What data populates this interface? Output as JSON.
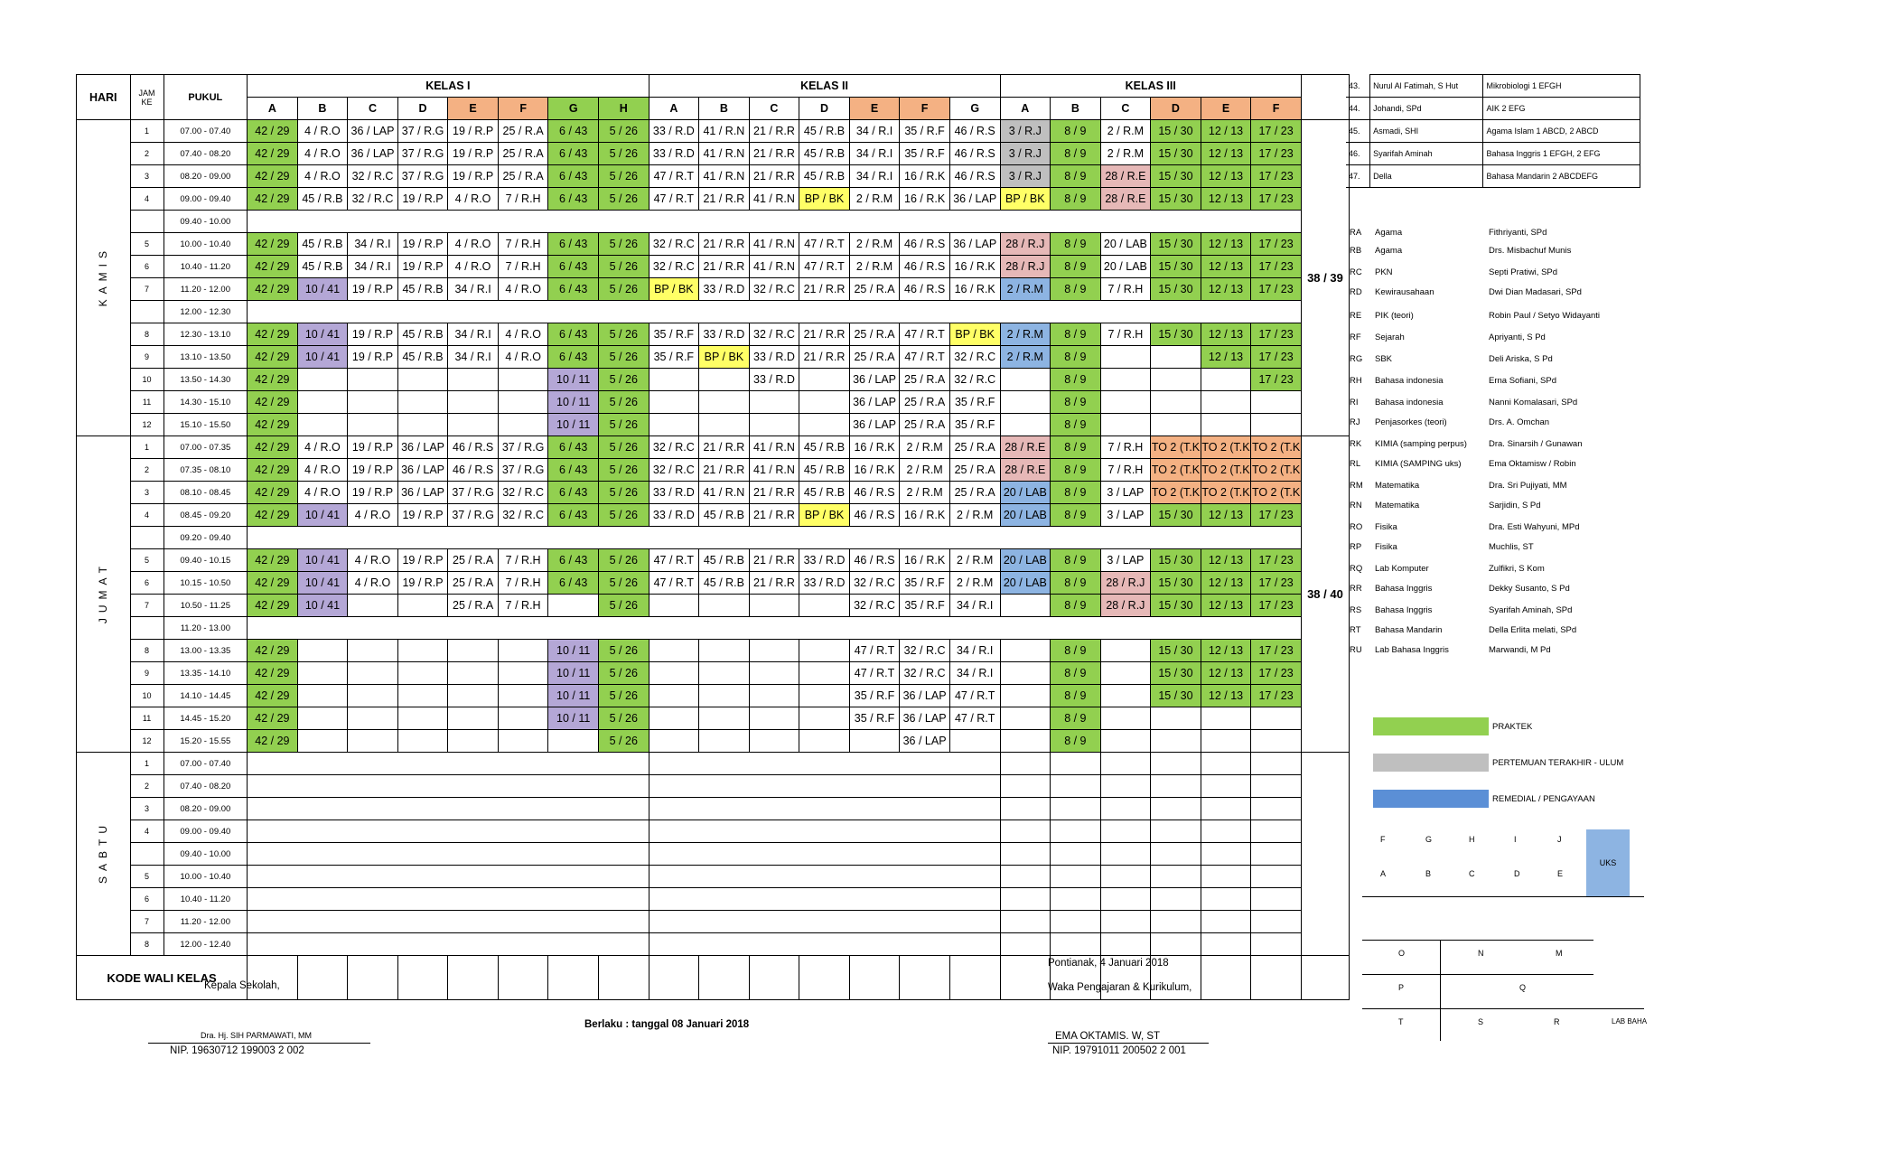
{
  "header": {
    "hari": "HARI",
    "jam": "JAM",
    "ke": "KE",
    "pukul": "PUKUL",
    "kelas1": "KELAS I",
    "kelas2": "KELAS II",
    "kelas3": "KELAS III",
    "sub1": [
      "A",
      "B",
      "C",
      "D",
      "E",
      "F",
      "G",
      "H"
    ],
    "sub2": [
      "A",
      "B",
      "C",
      "D",
      "E",
      "F",
      "G"
    ],
    "sub3": [
      "A",
      "B",
      "C",
      "D",
      "E",
      "F"
    ]
  },
  "days": [
    {
      "name": "KAMIS",
      "total": "38 / 39",
      "rows": [
        {
          "ke": "1",
          "pukul": "07.00 - 07.40",
          "cells": [
            "42 / 29",
            "4 / R.O",
            "36 / LAP",
            "37 / R.G",
            "19 / R.P",
            "25 / R.A",
            "6 / 43",
            "5 / 26",
            "33 / R.D",
            "41 / R.N",
            "21 / R.R",
            "45 / R.B",
            "34 / R.I",
            "35 / R.F",
            "46 / R.S",
            "3 / R.J",
            "8 / 9",
            "2 / R.M",
            "15 / 30",
            "12 / 13",
            "17 / 23"
          ]
        },
        {
          "ke": "2",
          "pukul": "07.40 - 08.20",
          "cells": [
            "42 / 29",
            "4 / R.O",
            "36 / LAP",
            "37 / R.G",
            "19 / R.P",
            "25 / R.A",
            "6 / 43",
            "5 / 26",
            "33 / R.D",
            "41 / R.N",
            "21 / R.R",
            "45 / R.B",
            "34 / R.I",
            "35 / R.F",
            "46 / R.S",
            "3 / R.J",
            "8 / 9",
            "2 / R.M",
            "15 / 30",
            "12 / 13",
            "17 / 23"
          ]
        },
        {
          "ke": "3",
          "pukul": "08.20 - 09.00",
          "cells": [
            "42 / 29",
            "4 / R.O",
            "32 / R.C",
            "37 / R.G",
            "19 / R.P",
            "25 / R.A",
            "6 / 43",
            "5 / 26",
            "47 / R.T",
            "41 / R.N",
            "21 / R.R",
            "45 / R.B",
            "34 / R.I",
            "16 / R.K",
            "46 / R.S",
            "3 / R.J",
            "8 / 9",
            "28 / R.E",
            "15 / 30",
            "12 / 13",
            "17 / 23"
          ]
        },
        {
          "ke": "4",
          "pukul": "09.00 - 09.40",
          "cells": [
            "42 / 29",
            "45 / R.B",
            "32 / R.C",
            "19 / R.P",
            "4 / R.O",
            "7 / R.H",
            "6 / 43",
            "5 / 26",
            "47 / R.T",
            "21 / R.R",
            "41 / R.N",
            "BP / BK",
            "2 / R.M",
            "16 / R.K",
            "36 / LAP",
            "BP / BK",
            "8 / 9",
            "28 / R.E",
            "15 / 30",
            "12 / 13",
            "17 / 23"
          ]
        },
        {
          "ke": "",
          "pukul": "09.40 - 10.00",
          "brk": true
        },
        {
          "ke": "5",
          "pukul": "10.00 - 10.40",
          "cells": [
            "42 / 29",
            "45 / R.B",
            "34 / R.I",
            "19 / R.P",
            "4 / R.O",
            "7 / R.H",
            "6 / 43",
            "5 / 26",
            "32 / R.C",
            "21 / R.R",
            "41 / R.N",
            "47 / R.T",
            "2 / R.M",
            "46 / R.S",
            "36 / LAP",
            "28 / R.J",
            "8 / 9",
            "20 / LAB",
            "15 / 30",
            "12 / 13",
            "17 / 23"
          ]
        },
        {
          "ke": "6",
          "pukul": "10.40 - 11.20",
          "cells": [
            "42 / 29",
            "45 / R.B",
            "34 / R.I",
            "19 / R.P",
            "4 / R.O",
            "7 / R.H",
            "6 / 43",
            "5 / 26",
            "32 / R.C",
            "21 / R.R",
            "41 / R.N",
            "47 / R.T",
            "2 / R.M",
            "46 / R.S",
            "16 / R.K",
            "28 / R.J",
            "8 / 9",
            "20 / LAB",
            "15 / 30",
            "12 / 13",
            "17 / 23"
          ]
        },
        {
          "ke": "7",
          "pukul": "11.20 - 12.00",
          "cells": [
            "42 / 29",
            "10 / 41",
            "19 / R.P",
            "45 / R.B",
            "34 / R.I",
            "4 / R.O",
            "6 / 43",
            "5 / 26",
            "BP / BK",
            "33 / R.D",
            "32 / R.C",
            "21 / R.R",
            "25 / R.A",
            "46 / R.S",
            "16 / R.K",
            "2 / R.M",
            "8 / 9",
            "7 / R.H",
            "15 / 30",
            "12 / 13",
            "17 / 23"
          ]
        },
        {
          "ke": "",
          "pukul": "12.00 - 12.30",
          "brk": true
        },
        {
          "ke": "8",
          "pukul": "12.30 - 13.10",
          "cells": [
            "42 / 29",
            "10 / 41",
            "19 / R.P",
            "45 / R.B",
            "34 / R.I",
            "4 / R.O",
            "6 / 43",
            "5 / 26",
            "35 / R.F",
            "33 / R.D",
            "32 / R.C",
            "21 / R.R",
            "25 / R.A",
            "47 / R.T",
            "BP / BK",
            "2 / R.M",
            "8 / 9",
            "7 / R.H",
            "15 / 30",
            "12 / 13",
            "17 / 23"
          ]
        },
        {
          "ke": "9",
          "pukul": "13.10 - 13.50",
          "cells": [
            "42 / 29",
            "10 / 41",
            "19 / R.P",
            "45 / R.B",
            "34 / R.I",
            "4 / R.O",
            "6 / 43",
            "5 / 26",
            "35 / R.F",
            "BP / BK",
            "33 / R.D",
            "21 / R.R",
            "25 / R.A",
            "47 / R.T",
            "32 / R.C",
            "2 / R.M",
            "8 / 9",
            "",
            "",
            "12 / 13",
            "17 / 23"
          ]
        },
        {
          "ke": "10",
          "pukul": "13.50 - 14.30",
          "cells": [
            "42 / 29",
            "",
            "",
            "",
            "",
            "",
            "10 / 11",
            "5 / 26",
            "",
            "",
            "33 / R.D",
            "",
            "36 / LAP",
            "25 / R.A",
            "32 / R.C",
            "",
            "8 / 9",
            "",
            "",
            "",
            "17 / 23"
          ]
        },
        {
          "ke": "11",
          "pukul": "14.30 - 15.10",
          "cells": [
            "42 / 29",
            "",
            "",
            "",
            "",
            "",
            "10 / 11",
            "5 / 26",
            "",
            "",
            "",
            "",
            "36 / LAP",
            "25 / R.A",
            "35 / R.F",
            "",
            "8 / 9",
            "",
            "",
            "",
            ""
          ]
        },
        {
          "ke": "12",
          "pukul": "15.10 - 15.50",
          "cells": [
            "42 / 29",
            "",
            "",
            "",
            "",
            "",
            "10 / 11",
            "5 / 26",
            "",
            "",
            "",
            "",
            "36 / LAP",
            "25 / R.A",
            "35 / R.F",
            "",
            "8 / 9",
            "",
            "",
            "",
            ""
          ]
        }
      ]
    },
    {
      "name": "JUMAT",
      "total": "38 / 40",
      "rows": [
        {
          "ke": "1",
          "pukul": "07.00 - 07.35",
          "cells": [
            "42 / 29",
            "4 / R.O",
            "19 / R.P",
            "36 / LAP",
            "46 / R.S",
            "37 / R.G",
            "6 / 43",
            "5 / 26",
            "32 / R.C",
            "21 / R.R",
            "41 / R.N",
            "45 / R.B",
            "16 / R.K",
            "2 / R.M",
            "25 / R.A",
            "28 / R.E",
            "8 / 9",
            "7 / R.H",
            "TO 2 (T.K",
            "TO 2 (T.K",
            "TO 2 (T.K"
          ]
        },
        {
          "ke": "2",
          "pukul": "07.35 - 08.10",
          "cells": [
            "42 / 29",
            "4 / R.O",
            "19 / R.P",
            "36 / LAP",
            "46 / R.S",
            "37 / R.G",
            "6 / 43",
            "5 / 26",
            "32 / R.C",
            "21 / R.R",
            "41 / R.N",
            "45 / R.B",
            "16 / R.K",
            "2 / R.M",
            "25 / R.A",
            "28 / R.E",
            "8 / 9",
            "7 / R.H",
            "TO 2 (T.K",
            "TO 2 (T.K",
            "TO 2 (T.K"
          ]
        },
        {
          "ke": "3",
          "pukul": "08.10 - 08.45",
          "cells": [
            "42 / 29",
            "4 / R.O",
            "19 / R.P",
            "36 / LAP",
            "37 / R.G",
            "32 / R.C",
            "6 / 43",
            "5 / 26",
            "33 / R.D",
            "41 / R.N",
            "21 / R.R",
            "45 / R.B",
            "46 / R.S",
            "2 / R.M",
            "25 / R.A",
            "20 / LAB",
            "8 / 9",
            "3 / LAP",
            "TO 2 (T.K",
            "TO 2 (T.K",
            "TO 2 (T.K"
          ]
        },
        {
          "ke": "4",
          "pukul": "08.45 - 09.20",
          "cells": [
            "42 / 29",
            "10 / 41",
            "4 / R.O",
            "19 / R.P",
            "37 / R.G",
            "32 / R.C",
            "6 / 43",
            "5 / 26",
            "33 / R.D",
            "45 / R.B",
            "21 / R.R",
            "BP / BK",
            "46 / R.S",
            "16 / R.K",
            "2 / R.M",
            "20 / LAB",
            "8 / 9",
            "3 / LAP",
            "15 / 30",
            "12 / 13",
            "17 / 23"
          ]
        },
        {
          "ke": "",
          "pukul": "09.20 - 09.40",
          "brk": true
        },
        {
          "ke": "5",
          "pukul": "09.40 - 10.15",
          "cells": [
            "42 / 29",
            "10 / 41",
            "4 / R.O",
            "19 / R.P",
            "25 / R.A",
            "7 / R.H",
            "6 / 43",
            "5 / 26",
            "47 / R.T",
            "45 / R.B",
            "21 / R.R",
            "33 / R.D",
            "46 / R.S",
            "16 / R.K",
            "2 / R.M",
            "20 / LAB",
            "8 / 9",
            "3 / LAP",
            "15 / 30",
            "12 / 13",
            "17 / 23"
          ]
        },
        {
          "ke": "6",
          "pukul": "10.15 - 10.50",
          "cells": [
            "42 / 29",
            "10 / 41",
            "4 / R.O",
            "19 / R.P",
            "25 / R.A",
            "7 / R.H",
            "6 / 43",
            "5 / 26",
            "47 / R.T",
            "45 / R.B",
            "21 / R.R",
            "33 / R.D",
            "32 / R.C",
            "35 / R.F",
            "2 / R.M",
            "20 / LAB",
            "8 / 9",
            "28 / R.J",
            "15 / 30",
            "12 / 13",
            "17 / 23"
          ]
        },
        {
          "ke": "7",
          "pukul": "10.50 - 11.25",
          "cells": [
            "42 / 29",
            "10 / 41",
            "",
            "",
            "25 / R.A",
            "7 / R.H",
            "",
            "5 / 26",
            "",
            "",
            "",
            "",
            "32 / R.C",
            "35 / R.F",
            "34 / R.I",
            "",
            "8 / 9",
            "28 / R.J",
            "15 / 30",
            "12 / 13",
            "17 / 23"
          ]
        },
        {
          "ke": "",
          "pukul": "11.20 - 13.00",
          "brk": true
        },
        {
          "ke": "8",
          "pukul": "13.00 - 13.35",
          "cells": [
            "42 / 29",
            "",
            "",
            "",
            "",
            "",
            "10 / 11",
            "5 / 26",
            "",
            "",
            "",
            "",
            "47 / R.T",
            "32 / R.C",
            "34 / R.I",
            "",
            "8 / 9",
            "",
            "15 / 30",
            "12 / 13",
            "17 / 23"
          ]
        },
        {
          "ke": "9",
          "pukul": "13.35 - 14.10",
          "cells": [
            "42 / 29",
            "",
            "",
            "",
            "",
            "",
            "10 / 11",
            "5 / 26",
            "",
            "",
            "",
            "",
            "47 / R.T",
            "32 / R.C",
            "34 / R.I",
            "",
            "8 / 9",
            "",
            "15 / 30",
            "12 / 13",
            "17 / 23"
          ]
        },
        {
          "ke": "10",
          "pukul": "14.10 - 14.45",
          "cells": [
            "42 / 29",
            "",
            "",
            "",
            "",
            "",
            "10 / 11",
            "5 / 26",
            "",
            "",
            "",
            "",
            "35 / R.F",
            "36 / LAP",
            "47 / R.T",
            "",
            "8 / 9",
            "",
            "15 / 30",
            "12 / 13",
            "17 / 23"
          ]
        },
        {
          "ke": "11",
          "pukul": "14.45 - 15.20",
          "cells": [
            "42 / 29",
            "",
            "",
            "",
            "",
            "",
            "10 / 11",
            "5 / 26",
            "",
            "",
            "",
            "",
            "35 / R.F",
            "36 / LAP",
            "47 / R.T",
            "",
            "8 / 9",
            "",
            "",
            "",
            ""
          ]
        },
        {
          "ke": "12",
          "pukul": "15.20 - 15.55",
          "cells": [
            "42 / 29",
            "",
            "",
            "",
            "",
            "",
            "",
            "5 / 26",
            "",
            "",
            "",
            "",
            "",
            "36 / LAP",
            "",
            "",
            "8 / 9",
            "",
            "",
            "",
            ""
          ]
        }
      ]
    },
    {
      "name": "SABTU",
      "total": "",
      "rows": [
        {
          "ke": "1",
          "pukul": "07.00 - 07.40",
          "sabtu": true
        },
        {
          "ke": "2",
          "pukul": "07.40 - 08.20",
          "sabtu": true
        },
        {
          "ke": "3",
          "pukul": "08.20 - 09.00",
          "sabtu": true
        },
        {
          "ke": "4",
          "pukul": "09.00 - 09.40",
          "sabtu": true
        },
        {
          "ke": "",
          "pukul": "09.40 - 10.00",
          "sabtu": true
        },
        {
          "ke": "5",
          "pukul": "10.00 - 10.40",
          "sabtu": true
        },
        {
          "ke": "6",
          "pukul": "10.40 - 11.20",
          "sabtu": true
        },
        {
          "ke": "7",
          "pukul": "11.20 - 12.00",
          "sabtu": true
        },
        {
          "ke": "8",
          "pukul": "12.00 - 12.40",
          "sabtu": true
        }
      ]
    }
  ],
  "kode_wali": "KODE WALI KELAS",
  "teachers_extra": [
    {
      "no": "43.",
      "name": "Nurul Al Fatimah, S Hut",
      "subject": "Mikrobiologi 1 EFGH"
    },
    {
      "no": "44.",
      "name": "Johandi, SPd",
      "subject": "AIK 2 EFG"
    },
    {
      "no": "45.",
      "name": "Asmadi, SHI",
      "subject": "Agama Islam 1 ABCD, 2 ABCD"
    },
    {
      "no": "46.",
      "name": "Syarifah Aminah",
      "subject": "Bahasa Inggris 1 EFGH, 2 EFG"
    },
    {
      "no": "47.",
      "name": "Della",
      "subject": "Bahasa Mandarin 2 ABCDEFG"
    }
  ],
  "rooms": [
    {
      "code": "RA",
      "subject": "Agama",
      "teacher": "Fithriyanti, SPd"
    },
    {
      "code": "RB",
      "subject": "Agama",
      "teacher": "Drs. Misbachuf Munis"
    },
    {
      "code": "RC",
      "subject": "PKN",
      "teacher": "Septi Pratiwi, SPd"
    },
    {
      "code": "RD",
      "subject": "Kewirausahaan",
      "teacher": "Dwi Dian Madasari, SPd"
    },
    {
      "code": "RE",
      "subject": "PIK (teori)",
      "teacher": "Robin Paul / Setyo Widayanti"
    },
    {
      "code": "RF",
      "subject": "Sejarah",
      "teacher": "Apriyanti, S Pd"
    },
    {
      "code": "RG",
      "subject": "SBK",
      "teacher": "Deli Ariska, S Pd"
    },
    {
      "code": "RH",
      "subject": "Bahasa indonesia",
      "teacher": "Erna Sofiani, SPd"
    },
    {
      "code": "RI",
      "subject": "Bahasa indonesia",
      "teacher": "Nanni Komalasari, SPd"
    },
    {
      "code": "RJ",
      "subject": "Penjasorkes (teori)",
      "teacher": "Drs. A. Omchan"
    },
    {
      "code": "RK",
      "subject": "KIMIA  (samping perpus)",
      "teacher": "Dra. Sinarsih / Gunawan"
    },
    {
      "code": "RL",
      "subject": "KIMIA (SAMPING uks)",
      "teacher": "Ema Oktamisw / Robin"
    },
    {
      "code": "RM",
      "subject": "Matematika",
      "teacher": "Dra. Sri Pujiyati, MM"
    },
    {
      "code": "RN",
      "subject": "Matematika",
      "teacher": "Sarjidin, S Pd"
    },
    {
      "code": "RO",
      "subject": "Fisika",
      "teacher": "Dra. Esti Wahyuni, MPd"
    },
    {
      "code": "RP",
      "subject": "Fisika",
      "teacher": "Muchlis, ST"
    },
    {
      "code": "RQ",
      "subject": "Lab Komputer",
      "teacher": "Zulfikri, S Kom"
    },
    {
      "code": "RR",
      "subject": "Bahasa Inggris",
      "teacher": "Dekky Susanto, S Pd"
    },
    {
      "code": "RS",
      "subject": "Bahasa Inggris",
      "teacher": "Syarifah Aminah, SPd"
    },
    {
      "code": "RT",
      "subject": "Bahasa Mandarin",
      "teacher": "Della Erlita melati, SPd"
    },
    {
      "code": "RU",
      "subject": "Lab Bahasa Inggris",
      "teacher": "Marwandi, M Pd"
    }
  ],
  "legend": [
    {
      "label": "PRAKTEK",
      "color": "#92d050"
    },
    {
      "label": "PERTEMUAN TERAKHIR  - ULUM",
      "color": "#bfbfbf"
    },
    {
      "label": "REMEDIAL / PENGAYAAN",
      "color": "#5b8fd6"
    }
  ],
  "room_grid": {
    "top": [
      "F",
      "G",
      "H",
      "I",
      "J"
    ],
    "bottom": [
      "A",
      "B",
      "C",
      "D",
      "E"
    ],
    "uks": "UKS"
  },
  "room_map": {
    "r1": [
      "O",
      "N",
      "M"
    ],
    "r2": [
      "P",
      "Q"
    ],
    "r3": [
      "T",
      "S",
      "R",
      "LAB BAHA"
    ]
  },
  "footer": {
    "kepala": "Kepala Sekolah,",
    "kepala_name": "Dra. Hj. SIH PARMAWATI, MM",
    "kepala_nip": "NIP. 19630712 199003 2 002",
    "berlaku": "Berlaku : tanggal 08 Januari 2018",
    "place_date": "Pontianak, 4 Januari 2018",
    "waka": "Waka Pengajaran & Kurikulum,",
    "waka_name": "EMA OKTAMIS. W, ST",
    "waka_nip": "NIP. 19791011 200502 2 001"
  }
}
